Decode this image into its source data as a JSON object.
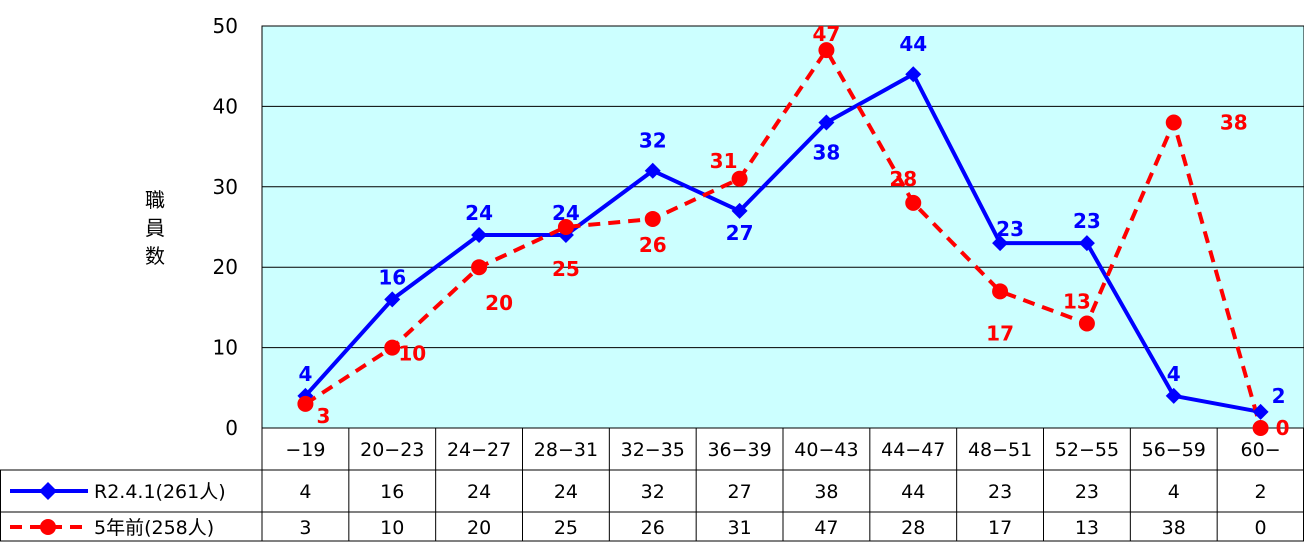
{
  "chart_data": {
    "type": "line",
    "ylabel": "職員数",
    "ylim": [
      0,
      50
    ],
    "yticks": [
      0,
      10,
      20,
      30,
      40,
      50
    ],
    "categories": [
      "−19",
      "20−23",
      "24−27",
      "28−31",
      "32−35",
      "36−39",
      "40−43",
      "44−47",
      "48−51",
      "52−55",
      "56−59",
      "60−"
    ],
    "grid": true,
    "plot_background": "#ccffff",
    "legend_placement": "data-table-left",
    "series": [
      {
        "name": "R2.4.1(261人)",
        "color": "#0000ff",
        "line_style": "solid",
        "marker": "diamond",
        "values": [
          4,
          16,
          24,
          24,
          32,
          27,
          38,
          44,
          23,
          23,
          4,
          2
        ]
      },
      {
        "name": "5年前(258人)",
        "color": "#ff0000",
        "line_style": "dashed",
        "marker": "circle",
        "values": [
          3,
          10,
          20,
          25,
          26,
          31,
          47,
          28,
          17,
          13,
          38,
          0
        ]
      }
    ]
  }
}
